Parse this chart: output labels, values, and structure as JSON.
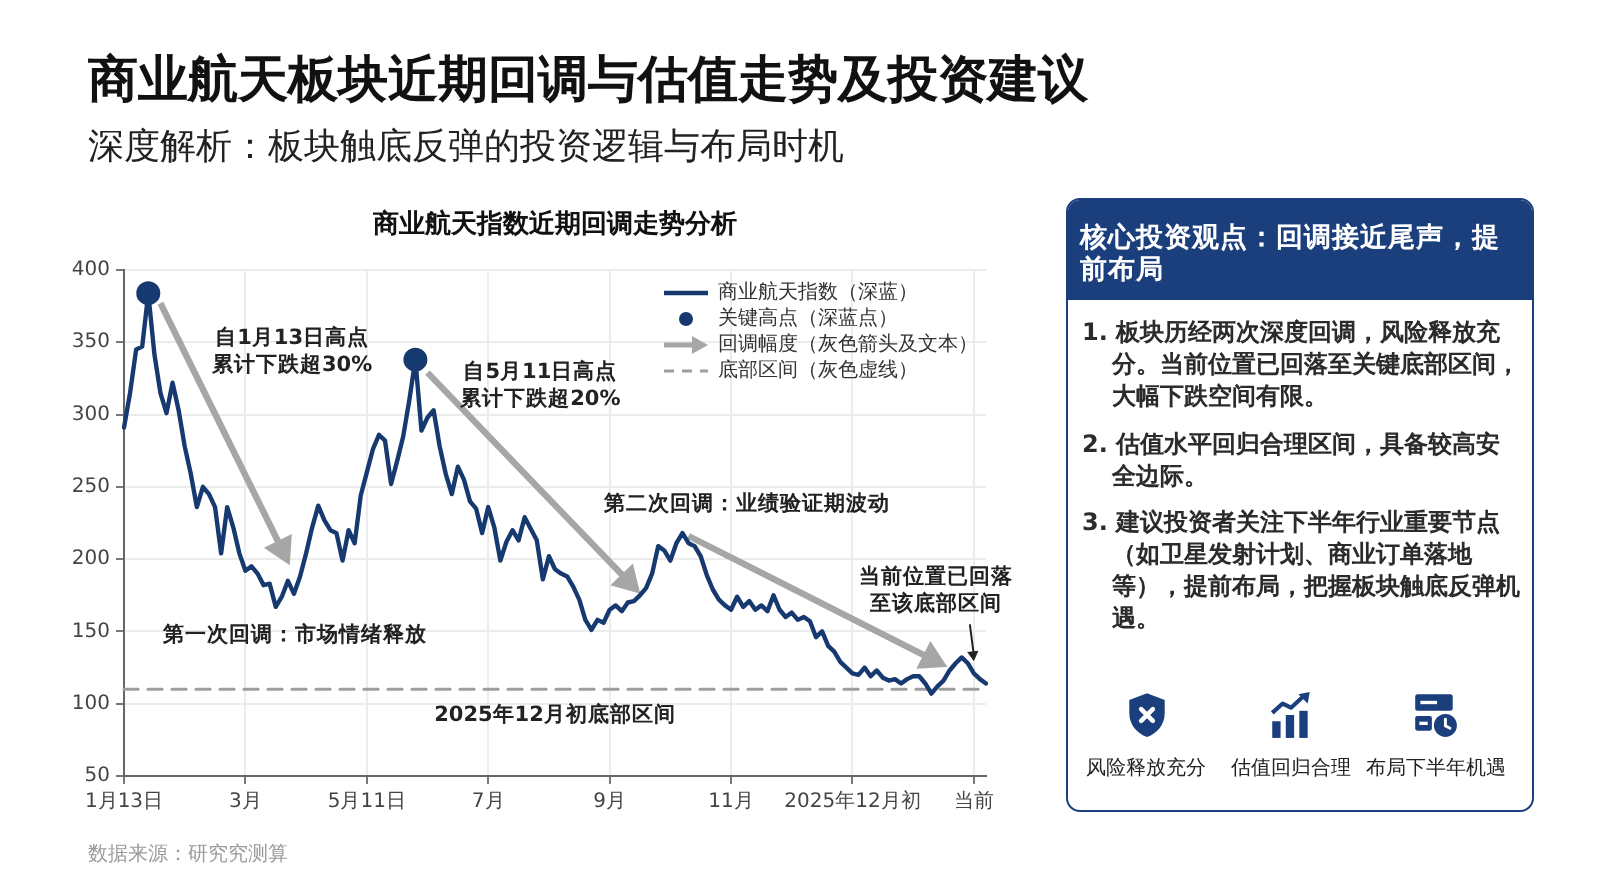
{
  "chart_data": [
    {
      "type": "line",
      "title": "商业航天板块近期回调与估值走势及投资建议",
      "subtitle": "深度解析：板块触底反弹的投资逻辑与布局时机",
      "categories": [
        "1月13日",
        null,
        null,
        null,
        null,
        null,
        null,
        null,
        null,
        null,
        null,
        null,
        null,
        null,
        null,
        null,
        null,
        null,
        null,
        null,
        "3月",
        null,
        null,
        null,
        null,
        null,
        null,
        null,
        null,
        null,
        null,
        null,
        null,
        null,
        null,
        null,
        null,
        null,
        null,
        null,
        "5月11日",
        null,
        null,
        null,
        null,
        null,
        null,
        null,
        null,
        null,
        null,
        null,
        null,
        null,
        null,
        null,
        null,
        null,
        null,
        null,
        "7月",
        null,
        null,
        null,
        null,
        null,
        null,
        null,
        null,
        null,
        null,
        null,
        null,
        null,
        null,
        null,
        null,
        null,
        null,
        null,
        "9月",
        null,
        null,
        null,
        null,
        null,
        null,
        null,
        null,
        null,
        null,
        null,
        null,
        null,
        null,
        null,
        null,
        null,
        null,
        null,
        "11月",
        null,
        null,
        null,
        null,
        null,
        null,
        null,
        null,
        null,
        null,
        null,
        null,
        null,
        null,
        null,
        null,
        null,
        null,
        null,
        "2025年12月初",
        null,
        null,
        null,
        null,
        null,
        null,
        null,
        null,
        null,
        null,
        null,
        null,
        null,
        null,
        null,
        null,
        null,
        null,
        null,
        "当前",
        null,
        null
      ],
      "ylim": [
        50,
        400
      ],
      "yticks": [
        50,
        100,
        150,
        200,
        250,
        300,
        350,
        400
      ],
      "grid": true,
      "legend": "top right",
      "marker": "none",
      "series": [
        {
          "name": "商业航天指数（深蓝）",
          "type": "line",
          "color": "#163a6f",
          "values": [
            291,
            315,
            345,
            347,
            384,
            342,
            315,
            301,
            322,
            303,
            278,
            259,
            236,
            250,
            245,
            236,
            204,
            236,
            222,
            204,
            192,
            195,
            190,
            182,
            183,
            167,
            174,
            185,
            176,
            188,
            204,
            222,
            237,
            227,
            220,
            218,
            199,
            220,
            211,
            244,
            260,
            276,
            286,
            282,
            252,
            268,
            285,
            310,
            338,
            289,
            298,
            303,
            278,
            259,
            245,
            264,
            255,
            240,
            235,
            218,
            236,
            222,
            199,
            212,
            220,
            213,
            229,
            221,
            213,
            186,
            202,
            193,
            190,
            188,
            181,
            172,
            158,
            151,
            158,
            156,
            165,
            168,
            164,
            170,
            171,
            175,
            180,
            190,
            209,
            206,
            199,
            211,
            218,
            211,
            209,
            202,
            189,
            179,
            172,
            168,
            165,
            174,
            167,
            171,
            165,
            168,
            164,
            175,
            165,
            160,
            163,
            158,
            160,
            157,
            146,
            150,
            140,
            136,
            129,
            125,
            121,
            120,
            125,
            119,
            123,
            118,
            116,
            117,
            114,
            117,
            119,
            119,
            114,
            107,
            112,
            116,
            123,
            128,
            132,
            128,
            121,
            117,
            114
          ]
        },
        {
          "name": "关键高点（深蓝点）",
          "type": "scatter",
          "marker": "circle",
          "color": "#163a6f",
          "values": [
            null,
            null,
            null,
            null,
            384,
            null,
            null,
            null,
            null,
            null,
            null,
            null,
            null,
            null,
            null,
            null,
            null,
            null,
            null,
            null,
            null,
            null,
            null,
            null,
            null,
            null,
            null,
            null,
            null,
            null,
            null,
            null,
            null,
            null,
            null,
            null,
            null,
            null,
            null,
            null,
            null,
            null,
            null,
            null,
            null,
            null,
            null,
            null,
            338,
            null,
            null,
            null,
            null,
            null,
            null,
            null,
            null,
            null,
            null,
            null,
            null,
            null,
            null,
            null,
            null,
            null,
            null,
            null,
            null,
            null,
            null,
            null,
            null,
            null,
            null,
            null,
            null,
            null,
            null,
            null,
            null,
            null,
            null,
            null,
            null,
            null,
            null,
            null,
            null,
            null,
            null,
            null,
            null,
            null,
            null,
            null,
            null,
            null,
            null,
            null,
            null,
            null,
            null,
            null,
            null,
            null,
            null,
            null,
            null,
            null,
            null,
            null,
            null,
            null,
            null,
            null,
            null,
            null,
            null,
            null,
            null,
            null,
            null,
            null,
            null,
            null,
            null,
            null,
            null,
            null,
            null,
            null,
            null,
            null,
            null,
            null,
            null,
            null,
            null,
            null,
            null,
            null,
            null
          ]
        },
        {
          "name": "回调幅度（灰色箭头及文本）",
          "type": "line",
          "marker": "triangle",
          "color": "#a6a6a6",
          "values": [
            null,
            null,
            null,
            null,
            null,
            null,
            377,
            null,
            null,
            null,
            null,
            null,
            null,
            null,
            null,
            null,
            null,
            null,
            null,
            null,
            null,
            null,
            null,
            null,
            null,
            null,
            207,
            null,
            null,
            null,
            null,
            null,
            null,
            null,
            null,
            null,
            null,
            null,
            null,
            null,
            null,
            null,
            null,
            null,
            null,
            null,
            null,
            null,
            null,
            null,
            null,
            null,
            null,
            null,
            null,
            null,
            null,
            null,
            null,
            null,
            null,
            null,
            null,
            null,
            null,
            null,
            null,
            null,
            null,
            null,
            null,
            null,
            null,
            null,
            null,
            null,
            null,
            null,
            null,
            null,
            null,
            null,
            null,
            null,
            null,
            null,
            null,
            null,
            null,
            null,
            null,
            null,
            null,
            null,
            null,
            null,
            null,
            null,
            null,
            null,
            null,
            null,
            null,
            null,
            null,
            null,
            null,
            null,
            null,
            null,
            null,
            null,
            null,
            null,
            null,
            null,
            null,
            null,
            null,
            null,
            null,
            null,
            null,
            null,
            null,
            null,
            null,
            null,
            null,
            null,
            null,
            null,
            null,
            null,
            null,
            null,
            null,
            null,
            null,
            null,
            null,
            null,
            null
          ]
        },
        {
          "type": "line",
          "marker": "triangle",
          "color": "#a6a6a6",
          "values": [
            null,
            null,
            null,
            null,
            null,
            null,
            null,
            null,
            null,
            null,
            null,
            null,
            null,
            null,
            null,
            null,
            null,
            null,
            null,
            null,
            null,
            null,
            null,
            null,
            null,
            null,
            null,
            null,
            null,
            null,
            null,
            null,
            null,
            null,
            null,
            null,
            null,
            null,
            null,
            null,
            null,
            null,
            null,
            null,
            null,
            null,
            null,
            null,
            null,
            null,
            329,
            null,
            null,
            null,
            null,
            null,
            null,
            null,
            null,
            null,
            null,
            null,
            null,
            null,
            null,
            null,
            null,
            null,
            null,
            null,
            null,
            null,
            null,
            null,
            null,
            null,
            null,
            null,
            null,
            null,
            null,
            null,
            null,
            185,
            null,
            null,
            null,
            null,
            null,
            null,
            null,
            null,
            null,
            null,
            null,
            null,
            null,
            null,
            null,
            null,
            null,
            null,
            null,
            null,
            null,
            null,
            null,
            null,
            null,
            null,
            null,
            null,
            null,
            null,
            null,
            null,
            null,
            null,
            null,
            null,
            null,
            null,
            null,
            null,
            null,
            null,
            null,
            null,
            null,
            null,
            null,
            null,
            null,
            null,
            null,
            null,
            null,
            null,
            null,
            null,
            null,
            null,
            null
          ]
        },
        {
          "type": "line",
          "marker": "triangle",
          "color": "#a6a6a6",
          "values": [
            null,
            null,
            null,
            null,
            null,
            null,
            null,
            null,
            null,
            null,
            null,
            null,
            null,
            null,
            null,
            null,
            null,
            null,
            null,
            null,
            null,
            null,
            null,
            null,
            null,
            null,
            null,
            null,
            null,
            null,
            null,
            null,
            null,
            null,
            null,
            null,
            null,
            null,
            null,
            null,
            null,
            null,
            null,
            null,
            null,
            null,
            null,
            null,
            null,
            null,
            null,
            null,
            null,
            null,
            null,
            null,
            null,
            null,
            null,
            null,
            null,
            null,
            null,
            null,
            null,
            null,
            null,
            null,
            null,
            null,
            null,
            null,
            null,
            null,
            null,
            null,
            null,
            null,
            null,
            null,
            null,
            null,
            null,
            null,
            null,
            null,
            null,
            null,
            null,
            null,
            null,
            null,
            null,
            216,
            null,
            null,
            null,
            null,
            null,
            null,
            null,
            null,
            null,
            null,
            null,
            null,
            null,
            null,
            null,
            null,
            null,
            null,
            null,
            null,
            null,
            null,
            null,
            null,
            null,
            null,
            null,
            null,
            null,
            null,
            null,
            null,
            null,
            null,
            null,
            null,
            null,
            null,
            null,
            131,
            null,
            null,
            null,
            null,
            null,
            null,
            null,
            null,
            null
          ]
        },
        {
          "name": "底部区间（灰色虚线）",
          "type": "line",
          "line_style": "dashed",
          "color": "#9e9e9e",
          "values": [
            110,
            110,
            110,
            110,
            110,
            110,
            110,
            110,
            110,
            110,
            110,
            110,
            110,
            110,
            110,
            110,
            110,
            110,
            110,
            110,
            110,
            110,
            110,
            110,
            110,
            110,
            110,
            110,
            110,
            110,
            110,
            110,
            110,
            110,
            110,
            110,
            110,
            110,
            110,
            110,
            110,
            110,
            110,
            110,
            110,
            110,
            110,
            110,
            110,
            110,
            110,
            110,
            110,
            110,
            110,
            110,
            110,
            110,
            110,
            110,
            110,
            110,
            110,
            110,
            110,
            110,
            110,
            110,
            110,
            110,
            110,
            110,
            110,
            110,
            110,
            110,
            110,
            110,
            110,
            110,
            110,
            110,
            110,
            110,
            110,
            110,
            110,
            110,
            110,
            110,
            110,
            110,
            110,
            110,
            110,
            110,
            110,
            110,
            110,
            110,
            110,
            110,
            110,
            110,
            110,
            110,
            110,
            110,
            110,
            110,
            110,
            110,
            110,
            110,
            110,
            110,
            110,
            110,
            110,
            110,
            110,
            110,
            110,
            110,
            110,
            110,
            110,
            110,
            110,
            110,
            110,
            110,
            110,
            110,
            110,
            110,
            110,
            110,
            110,
            110,
            110,
            110,
            110
          ]
        }
      ],
      "annotations": [
        "商业航天指数近期回调走势分析",
        "自1月13日高点累计下跌超30%",
        "自5月11日高点累计下跌超20%",
        "第一次回调：市场情绪释放",
        "第二次回调：业绩验证期波动",
        "数据来源：研究究测算",
        {
          "text": "2025年12月初底部区间",
          "y": 110
        },
        {
          "text": "当前位置已回落至该底部区间",
          "x": "当前",
          "y": 121
        }
      ]
    },
    {
      "type": "other",
      "title": "核心投资观点：回调接近尾声，提前布局",
      "annotations": [
        "1. 板块历经两次深度回调，风险释放充分。当前位置已回落至关键底部区间，大幅下跌空间有限。",
        "2. 估值水平回归合理区间，具备较高安全边际。",
        "3. 建议投资者关注下半年行业重要节点（如卫星发射计划、商业订单落地等），提前布局，把握板块触底反弹机遇。"
      ],
      "categories": [
        "风险释放充分",
        "估值回归合理",
        "布局下半年机遇"
      ]
    }
  ]
}
